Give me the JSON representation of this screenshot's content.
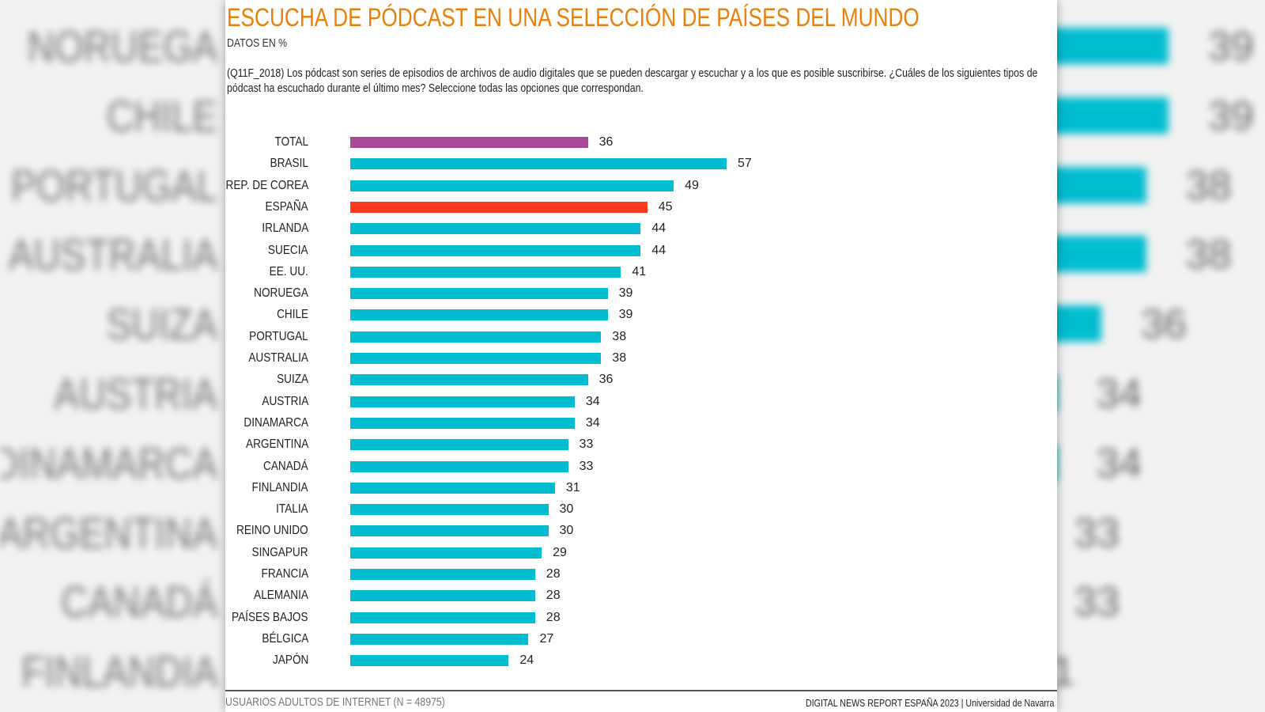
{
  "header": {
    "title": "ESCUCHA DE PÓDCAST EN UNA SELECCIÓN DE PAÍSES DEL MUNDO",
    "subtitle": "DATOS EN %",
    "question": "(Q11F_2018) Los pódcast son series de episodios de archivos de audio digitales que se pueden descargar y escuchar y a los que es posible suscribirse. ¿Cuáles de los siguientes tipos de pódcast ha escuchado durante el último mes? Seleccione todas las opciones que correspondan."
  },
  "footer": {
    "sample": "USUARIOS ADULTOS DE INTERNET (N = 48975)",
    "source": "DIGITAL NEWS REPORT ESPAÑA 2023 | Universidad de Navarra"
  },
  "colors": {
    "default": "#00bdd0",
    "total": "#a94a98",
    "highlight": "#ff3a1f",
    "title": "#e8800a"
  },
  "chart_data": {
    "type": "bar",
    "orientation": "horizontal",
    "title": "ESCUCHA DE PÓDCAST EN UNA SELECCIÓN DE PAÍSES DEL MUNDO",
    "ylabel": "DATOS EN %",
    "xlim": [
      0,
      100
    ],
    "grid": false,
    "categories": [
      "TOTAL",
      "BRASIL",
      "REP. DE COREA",
      "ESPAÑA",
      "IRLANDA",
      "SUECIA",
      "EE. UU.",
      "NORUEGA",
      "CHILE",
      "PORTUGAL",
      "AUSTRALIA",
      "SUIZA",
      "AUSTRIA",
      "DINAMARCA",
      "ARGENTINA",
      "CANADÁ",
      "FINLANDIA",
      "ITALIA",
      "REINO UNIDO",
      "SINGAPUR",
      "FRANCIA",
      "ALEMANIA",
      "PAÍSES BAJOS",
      "BÉLGICA",
      "JAPÓN"
    ],
    "values": [
      36,
      57,
      49,
      45,
      44,
      44,
      41,
      39,
      39,
      38,
      38,
      36,
      34,
      34,
      33,
      33,
      31,
      30,
      30,
      29,
      28,
      28,
      28,
      27,
      24
    ],
    "highlight": {
      "TOTAL": "total",
      "ESPAÑA": "highlight"
    }
  }
}
